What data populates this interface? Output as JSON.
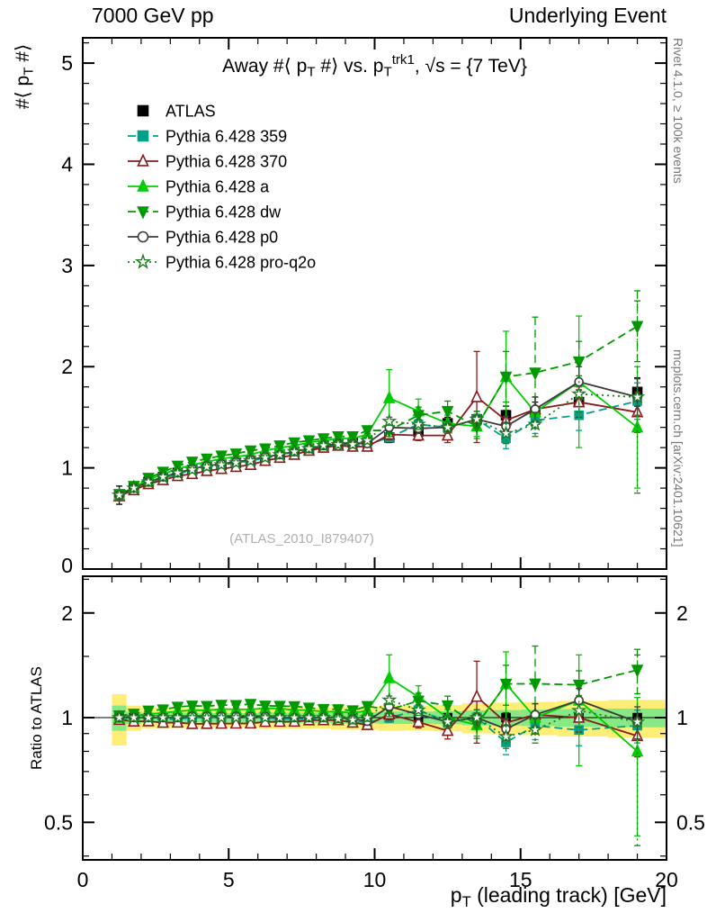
{
  "header": {
    "left": "7000 GeV pp",
    "right": "Underlying Event"
  },
  "side_notes": {
    "top_right": "Rivet 4.1.0, ≥ 100k events",
    "bottom_right": "mcplots.cern.ch [arXiv:2401.10621]"
  },
  "watermark": "(ATLAS_2010_I879407)",
  "chart_data": {
    "type": "line",
    "title_plain": "Away #⟨ p_T #⟩ vs. p_T^trk1, √s = {7 TeV}",
    "title_segments": [
      {
        "t": "Away #⟨ p"
      },
      {
        "t": "T",
        "m": "sub"
      },
      {
        "t": " #⟩ vs. p"
      },
      {
        "t": "T",
        "m": "sub"
      },
      {
        "t": "trk1",
        "m": "sup"
      },
      {
        "t": ", √s = {7 TeV}"
      }
    ],
    "ylabel_plain": "#⟨ p_T #⟩",
    "ylabel_segments": [
      {
        "t": "#⟨ p"
      },
      {
        "t": "T",
        "m": "sub"
      },
      {
        "t": " #⟩"
      }
    ],
    "xlabel_plain": "p_T (leading track) [GeV]",
    "xlabel_segments": [
      {
        "t": "p"
      },
      {
        "t": "T",
        "m": "sub"
      },
      {
        "t": " (leading track) [GeV]"
      }
    ],
    "ratio_label": "Ratio to ATLAS",
    "colors": {
      "band_yellow": "#ffee75",
      "band_green": "#86e986",
      "frame": "#000000",
      "watermark_gray": "#b0b0b0"
    },
    "axes": {
      "xlim": [
        0,
        20
      ],
      "ylim": [
        0,
        5.25
      ],
      "ratio_ylim": [
        0.39,
        2.55
      ],
      "x_ticks": [
        {
          "v": 0,
          "label": "0"
        },
        {
          "v": 5,
          "label": "5"
        },
        {
          "v": 10,
          "label": "10"
        },
        {
          "v": 15,
          "label": "15"
        },
        {
          "v": 20,
          "label": "20"
        }
      ],
      "main_y_ticks": [
        {
          "v": 0,
          "label": "0"
        },
        {
          "v": 1,
          "label": "1"
        },
        {
          "v": 2,
          "label": "2"
        },
        {
          "v": 3,
          "label": "3"
        },
        {
          "v": 4,
          "label": "4"
        },
        {
          "v": 5,
          "label": "5"
        }
      ],
      "ratio_y_ticks": [
        {
          "v": 0.5,
          "label": "0.5"
        },
        {
          "v": 1,
          "label": "1"
        },
        {
          "v": 2,
          "label": "2"
        }
      ],
      "ratio_minor_ticks": [
        0.4,
        0.6,
        0.7,
        0.8,
        0.9,
        1.5,
        2.5
      ]
    },
    "x": [
      1.25,
      1.75,
      2.25,
      2.75,
      3.25,
      3.75,
      4.25,
      4.75,
      5.25,
      5.75,
      6.25,
      6.75,
      7.25,
      7.75,
      8.25,
      8.75,
      9.25,
      9.75,
      10.5,
      11.5,
      12.5,
      13.5,
      14.5,
      15.5,
      17,
      19
    ],
    "series": [
      {
        "id": "atlas",
        "name": "ATLAS",
        "color": "#000000",
        "line": "none",
        "marker": "square",
        "filled": true,
        "values": [
          0.73,
          0.8,
          0.86,
          0.91,
          0.95,
          0.98,
          1.01,
          1.03,
          1.05,
          1.07,
          1.1,
          1.13,
          1.16,
          1.19,
          1.22,
          1.24,
          1.25,
          1.27,
          1.3,
          1.36,
          1.44,
          1.48,
          1.52,
          1.55,
          1.65,
          1.75
        ],
        "errors": [
          0.09,
          0.03,
          0.02,
          0.02,
          0.02,
          0.02,
          0.02,
          0.02,
          0.02,
          0.02,
          0.03,
          0.03,
          0.03,
          0.03,
          0.03,
          0.04,
          0.04,
          0.04,
          0.05,
          0.05,
          0.06,
          0.08,
          0.09,
          0.1,
          0.12,
          0.14
        ]
      },
      {
        "id": "py359",
        "name": "Pythia 6.428 359",
        "color": "#00a08a",
        "line": "dashed",
        "marker": "square",
        "filled": true,
        "values": [
          0.72,
          0.79,
          0.85,
          0.9,
          0.94,
          0.98,
          1.01,
          1.03,
          1.05,
          1.07,
          1.1,
          1.12,
          1.15,
          1.18,
          1.21,
          1.23,
          1.22,
          1.23,
          1.3,
          1.43,
          1.4,
          1.48,
          1.29,
          1.47,
          1.52,
          1.66
        ],
        "errors": [
          0.01,
          0.01,
          0.01,
          0.01,
          0.01,
          0.01,
          0.01,
          0.01,
          0.01,
          0.02,
          0.02,
          0.02,
          0.02,
          0.02,
          0.03,
          0.03,
          0.03,
          0.03,
          0.04,
          0.05,
          0.06,
          0.08,
          0.1,
          0.13,
          0.15,
          0.18
        ]
      },
      {
        "id": "py370",
        "name": "Pythia 6.428 370",
        "color": "#8b1a1a",
        "line": "solid",
        "marker": "triangle-up",
        "filled": false,
        "values": [
          0.72,
          0.78,
          0.84,
          0.88,
          0.92,
          0.94,
          0.97,
          0.99,
          1.01,
          1.03,
          1.07,
          1.1,
          1.13,
          1.17,
          1.2,
          1.22,
          1.21,
          1.21,
          1.33,
          1.32,
          1.32,
          1.7,
          1.47,
          1.58,
          1.65,
          1.55
        ],
        "errors": [
          0.01,
          0.01,
          0.01,
          0.01,
          0.01,
          0.01,
          0.01,
          0.01,
          0.01,
          0.02,
          0.02,
          0.02,
          0.02,
          0.02,
          0.03,
          0.03,
          0.03,
          0.03,
          0.05,
          0.05,
          0.07,
          0.45,
          0.1,
          0.12,
          0.15,
          0.2
        ]
      },
      {
        "id": "pya",
        "name": "Pythia 6.428 a",
        "color": "#00cd00",
        "line": "solid",
        "marker": "triangle-up",
        "filled": true,
        "values": [
          0.73,
          0.81,
          0.88,
          0.94,
          0.99,
          1.03,
          1.06,
          1.09,
          1.11,
          1.13,
          1.17,
          1.2,
          1.22,
          1.25,
          1.27,
          1.29,
          1.29,
          1.33,
          1.69,
          1.56,
          1.44,
          1.41,
          1.9,
          1.55,
          1.85,
          1.4
        ],
        "errors": [
          0.01,
          0.01,
          0.01,
          0.01,
          0.01,
          0.01,
          0.01,
          0.01,
          0.01,
          0.02,
          0.02,
          0.02,
          0.02,
          0.02,
          0.03,
          0.03,
          0.03,
          0.03,
          0.28,
          0.12,
          0.08,
          0.1,
          0.45,
          0.15,
          0.65,
          0.6
        ]
      },
      {
        "id": "pydw",
        "name": "Pythia 6.428 dw",
        "color": "#009900",
        "line": "dashed",
        "marker": "triangle-down",
        "filled": true,
        "values": [
          0.74,
          0.82,
          0.9,
          0.96,
          1.02,
          1.06,
          1.09,
          1.12,
          1.14,
          1.17,
          1.19,
          1.22,
          1.25,
          1.27,
          1.29,
          1.31,
          1.31,
          1.37,
          1.37,
          1.52,
          1.56,
          1.41,
          1.9,
          1.94,
          2.05,
          2.4
        ],
        "errors": [
          0.01,
          0.01,
          0.01,
          0.01,
          0.01,
          0.01,
          0.01,
          0.01,
          0.01,
          0.02,
          0.02,
          0.02,
          0.02,
          0.02,
          0.03,
          0.03,
          0.03,
          0.03,
          0.06,
          0.08,
          0.1,
          0.12,
          0.25,
          0.55,
          0.2,
          0.35
        ]
      },
      {
        "id": "pyp0",
        "name": "Pythia 6.428 p0",
        "color": "#3c3c3c",
        "line": "solid",
        "marker": "circle",
        "filled": false,
        "values": [
          0.73,
          0.8,
          0.86,
          0.91,
          0.95,
          0.99,
          1.02,
          1.04,
          1.06,
          1.08,
          1.11,
          1.13,
          1.16,
          1.19,
          1.22,
          1.24,
          1.24,
          1.24,
          1.4,
          1.39,
          1.4,
          1.48,
          1.41,
          1.58,
          1.85,
          1.7
        ],
        "errors": [
          0.01,
          0.01,
          0.01,
          0.01,
          0.01,
          0.01,
          0.01,
          0.01,
          0.01,
          0.02,
          0.02,
          0.02,
          0.02,
          0.02,
          0.03,
          0.03,
          0.03,
          0.03,
          0.04,
          0.05,
          0.06,
          0.08,
          0.1,
          0.12,
          0.15,
          0.18
        ]
      },
      {
        "id": "pyq2o",
        "name": "Pythia 6.428 pro-q2o",
        "color": "#1e7d1e",
        "line": "dotted",
        "marker": "star",
        "filled": false,
        "values": [
          0.73,
          0.8,
          0.86,
          0.91,
          0.95,
          0.98,
          1.01,
          1.03,
          1.05,
          1.07,
          1.1,
          1.13,
          1.16,
          1.19,
          1.22,
          1.23,
          1.23,
          1.27,
          1.46,
          1.43,
          1.4,
          1.48,
          1.34,
          1.43,
          1.73,
          1.7
        ],
        "errors": [
          0.01,
          0.01,
          0.01,
          0.01,
          0.01,
          0.01,
          0.01,
          0.01,
          0.01,
          0.02,
          0.02,
          0.02,
          0.02,
          0.02,
          0.03,
          0.03,
          0.03,
          0.03,
          0.04,
          0.05,
          0.06,
          0.08,
          0.1,
          0.12,
          0.18,
          0.95
        ]
      }
    ]
  }
}
